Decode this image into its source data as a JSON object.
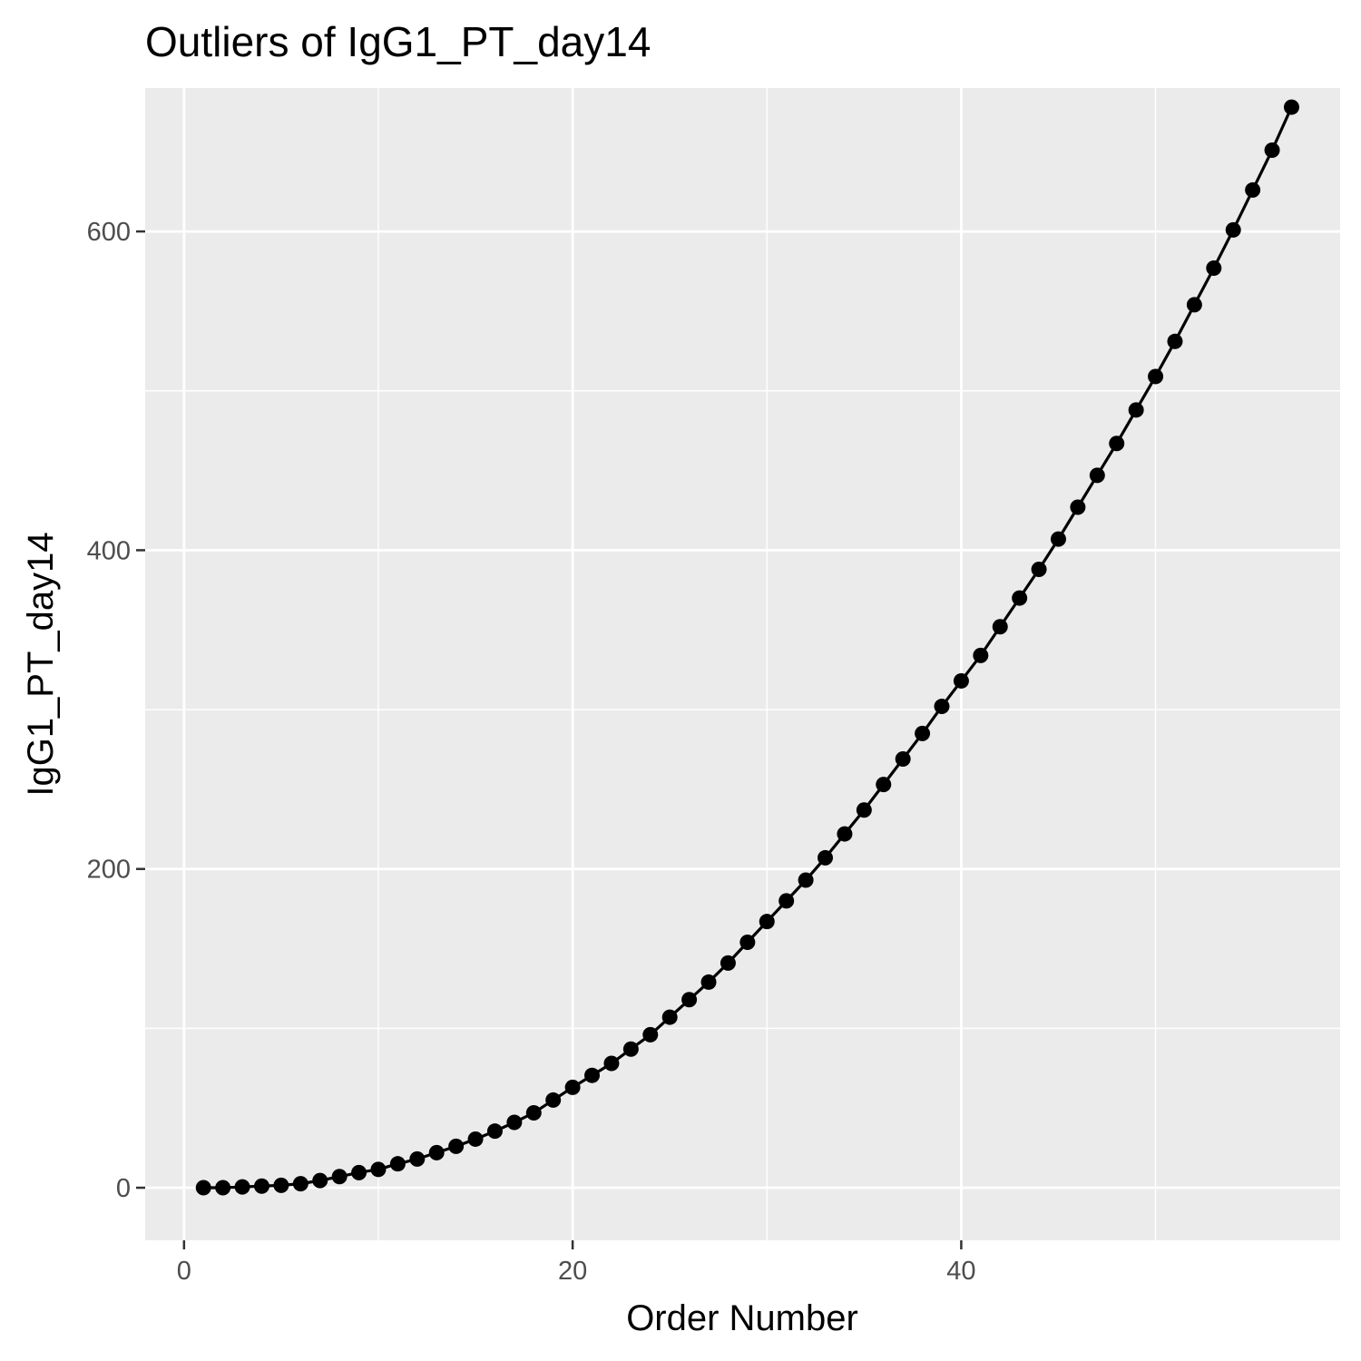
{
  "chart_data": {
    "type": "line",
    "title": "Outliers of IgG1_PT_day14",
    "xlabel": "Order Number",
    "ylabel": "IgG1_PT_day14",
    "xlim": [
      -2,
      59.5
    ],
    "ylim": [
      -33,
      690
    ],
    "x_ticks": [
      0,
      20,
      40
    ],
    "x_minor_ticks": [
      10,
      30,
      50
    ],
    "y_ticks": [
      0,
      200,
      400,
      600
    ],
    "y_minor_ticks": [
      100,
      300,
      500
    ],
    "grid": true,
    "panel_background": "#ebebeb",
    "grid_color": "#ffffff",
    "line_color": "#000000",
    "point_color": "#000000",
    "series": [
      {
        "x": [
          1,
          2,
          3,
          4,
          5,
          6,
          7,
          8,
          9,
          10,
          11,
          12,
          13,
          14,
          15,
          16,
          17,
          18,
          19,
          20,
          21,
          22,
          23,
          24,
          25,
          26,
          27,
          28,
          29,
          30,
          31,
          32,
          33,
          34,
          35,
          36,
          37,
          38,
          39,
          40,
          41,
          42,
          43,
          44,
          45,
          46,
          47,
          48,
          49,
          50,
          51,
          52,
          53,
          54,
          55,
          56,
          57
        ],
        "y": [
          0,
          0,
          0.5,
          1,
          1.5,
          2.5,
          4.5,
          7,
          9.5,
          11.5,
          15,
          18,
          22,
          26,
          30.5,
          35.5,
          41,
          47,
          55,
          63,
          70.5,
          78,
          87,
          96,
          107,
          118,
          129,
          141,
          154,
          167,
          180,
          193,
          207,
          222,
          237,
          253,
          269,
          285,
          302,
          318,
          334,
          352,
          370,
          388,
          407,
          427,
          447,
          467,
          488,
          509,
          531,
          554,
          577,
          601,
          626,
          651,
          678
        ]
      }
    ]
  }
}
